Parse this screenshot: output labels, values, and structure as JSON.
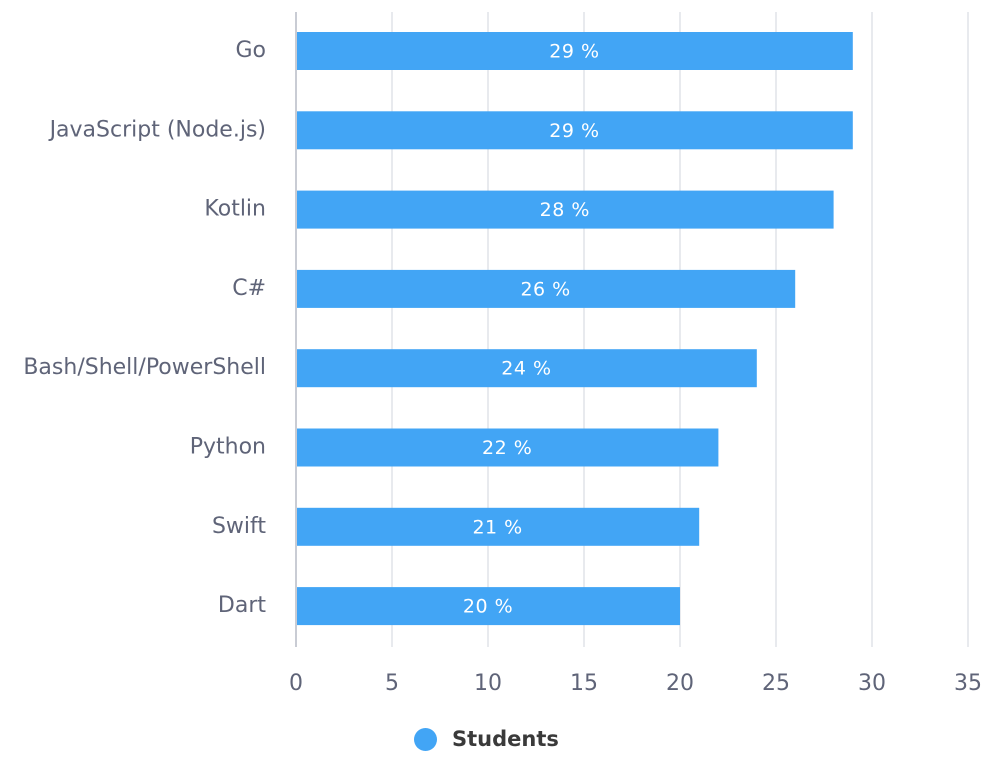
{
  "chart_data": {
    "type": "bar",
    "orientation": "horizontal",
    "title": "",
    "xlabel": "",
    "ylabel": "",
    "categories": [
      "Go",
      "JavaScript (Node.js)",
      "Kotlin",
      "C#",
      "Bash/Shell/PowerShell",
      "Python",
      "Swift",
      "Dart"
    ],
    "series": [
      {
        "name": "Students",
        "values": [
          29,
          29,
          28,
          26,
          24,
          22,
          21,
          20
        ],
        "data_labels": [
          "29 %",
          "29 %",
          "28 %",
          "26 %",
          "24 %",
          "22 %",
          "21 %",
          "20 %"
        ],
        "color": "#42a5f5"
      }
    ],
    "xlim": [
      0,
      35
    ],
    "xticks": [
      0,
      5,
      10,
      15,
      20,
      25,
      30,
      35
    ],
    "grid": true,
    "legend_position": "bottom-center"
  },
  "legend": {
    "label": "Students",
    "color": "#42a5f5"
  },
  "colors": {
    "bar": "#42a5f5",
    "grid": "#e1e3e8",
    "axis": "#c9ccd4",
    "text": "#5f6478"
  }
}
